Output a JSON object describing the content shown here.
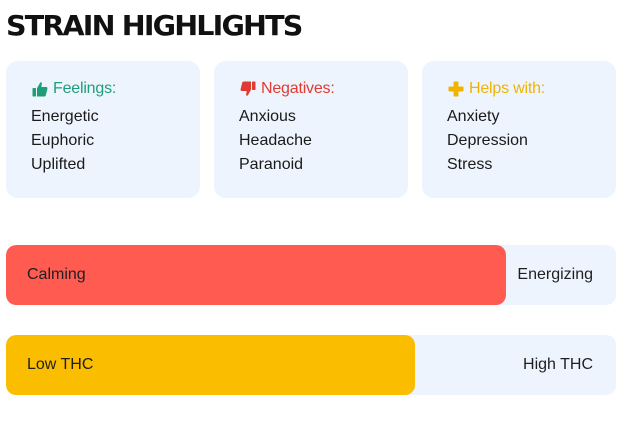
{
  "title": "STRAIN HIGHLIGHTS",
  "cards": [
    {
      "icon": "thumbs-up-icon",
      "label": "Feelings:",
      "color": "#1e9e78",
      "items": [
        "Energetic",
        "Euphoric",
        "Uplifted"
      ]
    },
    {
      "icon": "thumbs-down-icon",
      "label": "Negatives:",
      "color": "#e03b33",
      "items": [
        "Anxious",
        "Headache",
        "Paranoid"
      ]
    },
    {
      "icon": "plus-icon",
      "label": "Helps with:",
      "color": "#f0b400",
      "items": [
        "Anxiety",
        "Depression",
        "Stress"
      ]
    }
  ],
  "scales": [
    {
      "left_label": "Calming",
      "right_label": "Energizing",
      "level_percent": 82,
      "color": "#ff5b51"
    },
    {
      "left_label": "Low THC",
      "right_label": "High THC",
      "level_percent": 67,
      "color": "#fbbd00"
    }
  ],
  "colors": {
    "card_background": "#edf4fd",
    "title": "#111111"
  }
}
